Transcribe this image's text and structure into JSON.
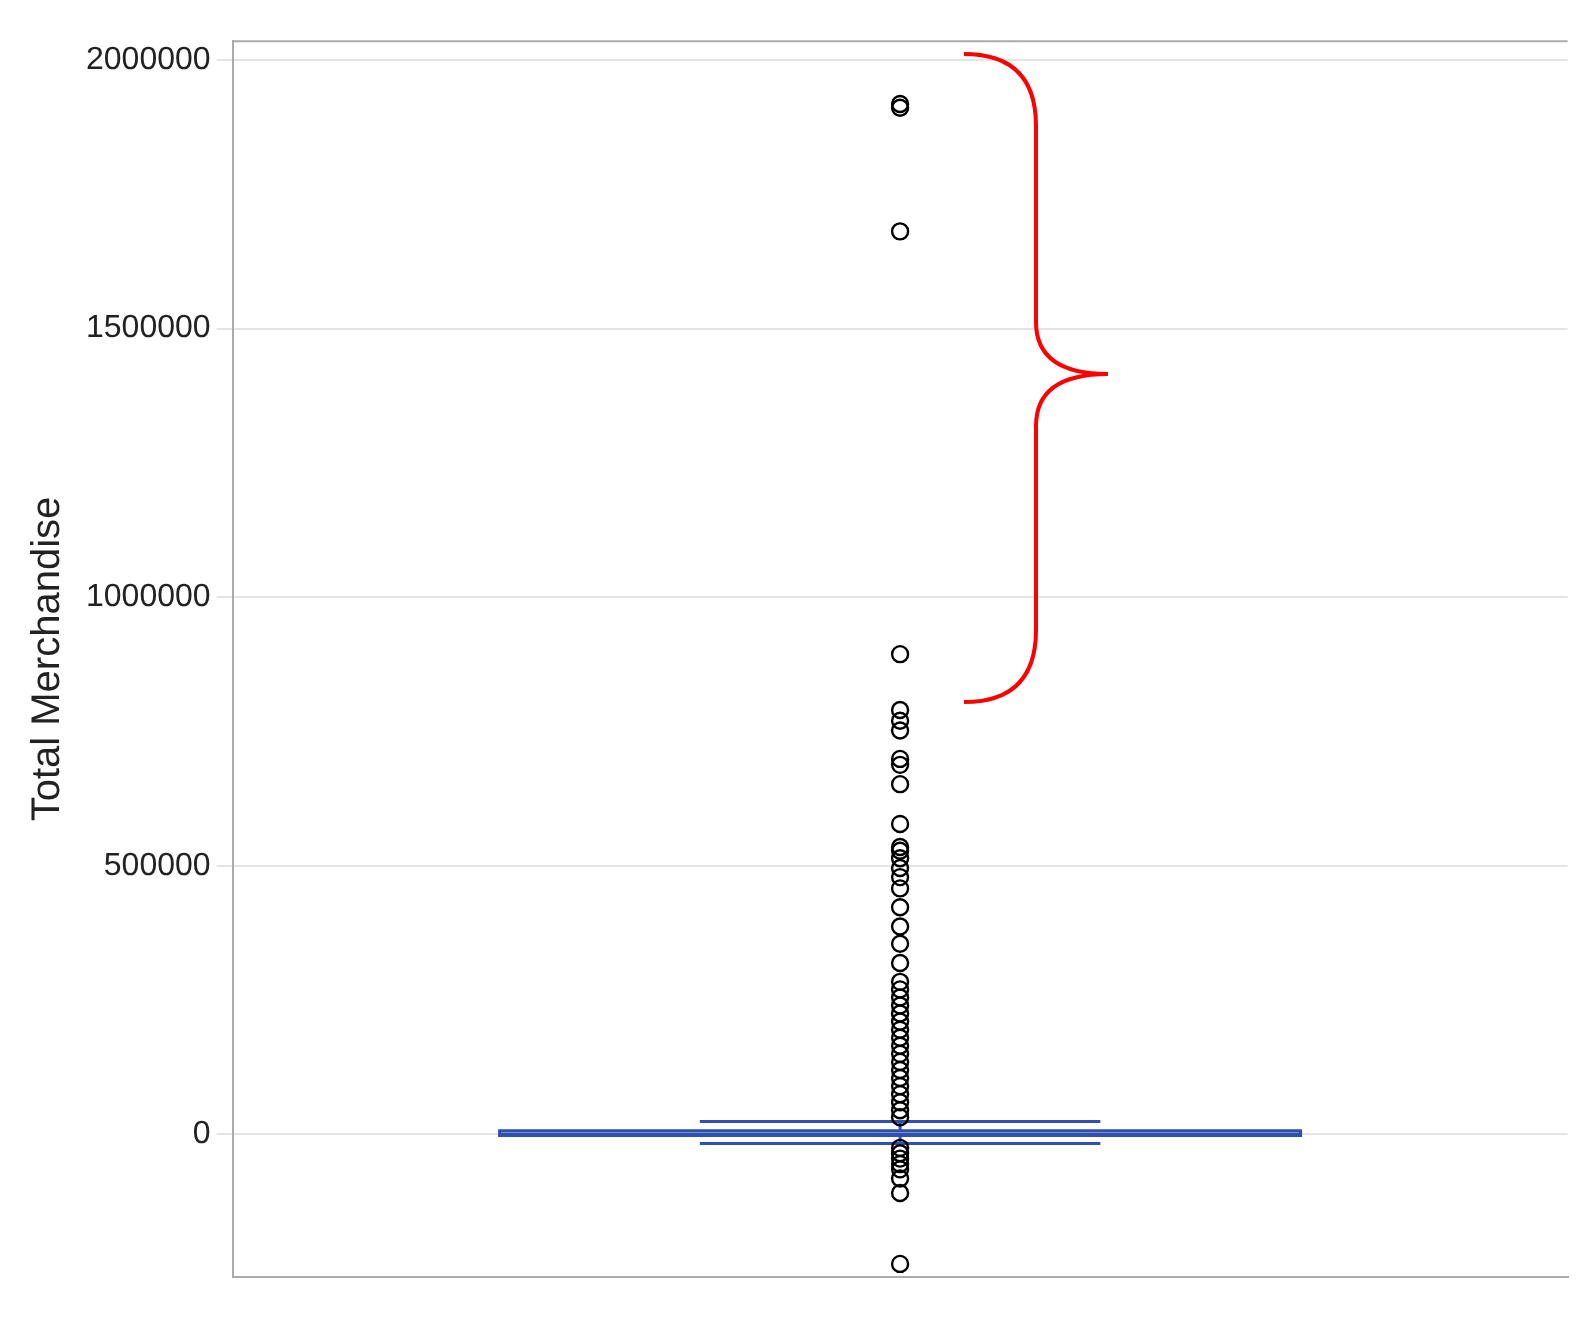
{
  "chart_data": {
    "type": "box",
    "ylabel": "Total Merchandise",
    "categories": [
      null
    ],
    "color": "#2e50b0",
    "ylim": [
      -265000,
      2035000
    ],
    "yticks": [
      0,
      500000,
      1000000,
      1500000,
      2000000
    ],
    "grid": "y",
    "tick_labels": "y",
    "marker": "circle",
    "boxes": [
      {
        "low": -17000,
        "q1": -2000,
        "median": 1000,
        "q3": 7000,
        "high": 24000,
        "outliers": [
          1918000,
          1911000,
          1681000,
          894000,
          790000,
          770000,
          752000,
          699000,
          688000,
          652000,
          578000,
          535000,
          528000,
          514000,
          496000,
          479000,
          458000,
          423000,
          387000,
          355000,
          319000,
          284000,
          270000,
          255000,
          240000,
          225000,
          210000,
          195000,
          180000,
          165000,
          150000,
          135000,
          120000,
          105000,
          90000,
          75000,
          60000,
          45000,
          32000,
          -25000,
          -35000,
          -45000,
          -55000,
          -65000,
          -82000,
          -109000,
          -241000
        ]
      }
    ]
  }
}
